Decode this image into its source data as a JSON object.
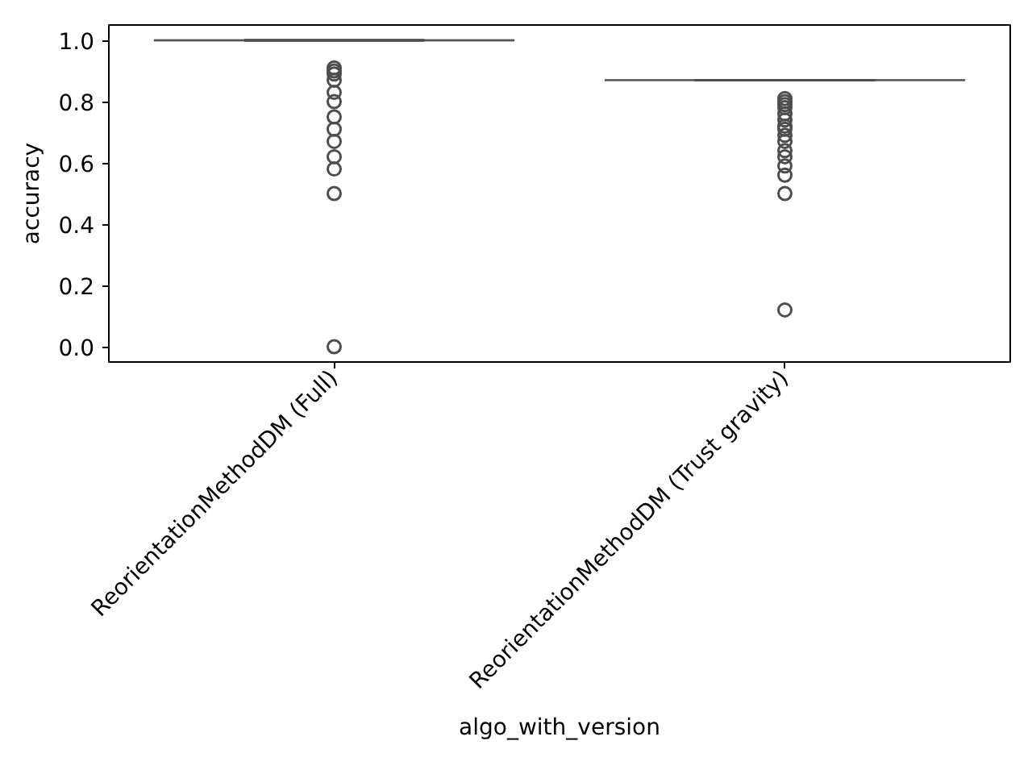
{
  "chart_data": {
    "type": "box",
    "categories": [
      "ReorientationMethodDM (Full)",
      "ReorientationMethodDM (Trust gravity)"
    ],
    "color": "#4d4d4d",
    "boxes": [
      {
        "low": 1.0,
        "q1": 1.0,
        "median": 1.0,
        "q3": 1.0,
        "high": 1.0,
        "outliers": [
          0.91,
          0.9,
          0.89,
          0.87,
          0.83,
          0.8,
          0.75,
          0.71,
          0.67,
          0.62,
          0.58,
          0.5,
          0.0
        ]
      },
      {
        "low": 0.87,
        "q1": 0.87,
        "median": 0.87,
        "q3": 0.87,
        "high": 0.87,
        "outliers": [
          0.81,
          0.8,
          0.79,
          0.78,
          0.76,
          0.74,
          0.72,
          0.71,
          0.69,
          0.67,
          0.64,
          0.62,
          0.59,
          0.56,
          0.5,
          0.12
        ]
      }
    ],
    "xlabel": "algo_with_version",
    "ylabel": "accuracy",
    "ylim": [
      -0.05,
      1.05
    ],
    "yticks": [
      {
        "value": 0.0,
        "label": "0.0"
      },
      {
        "value": 0.2,
        "label": "0.2"
      },
      {
        "value": 0.4,
        "label": "0.4"
      },
      {
        "value": 0.6,
        "label": "0.6"
      },
      {
        "value": 0.8,
        "label": "0.8"
      },
      {
        "value": 1.0,
        "label": "1.0"
      }
    ],
    "marker": "circle"
  }
}
